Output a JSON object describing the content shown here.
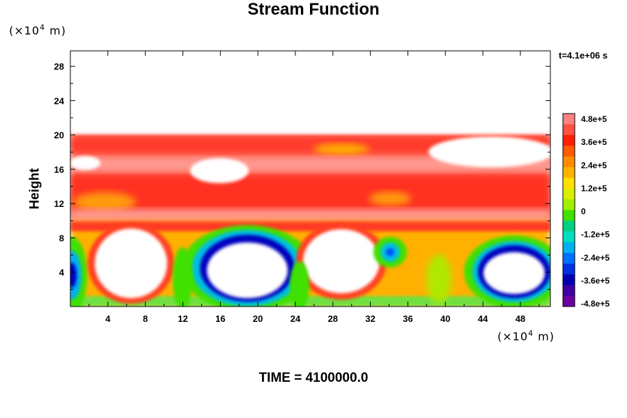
{
  "chart_data": {
    "type": "heatmap",
    "title": "Stream Function",
    "ylabel": "Height",
    "xunit": "(×10",
    "exp": "4",
    "unit_tail": " m)",
    "timestamp": "t=4.1e+06 s",
    "time_label": "TIME = 4100000.0",
    "x_ticks": [
      "4",
      "8",
      "12",
      "16",
      "20",
      "24",
      "28",
      "32",
      "36",
      "40",
      "44",
      "48"
    ],
    "x_tick_values": [
      4,
      8,
      12,
      16,
      20,
      24,
      28,
      32,
      36,
      40,
      44,
      48
    ],
    "y_ticks": [
      "4",
      "8",
      "12",
      "16",
      "20",
      "24",
      "28"
    ],
    "y_tick_values": [
      4,
      8,
      12,
      16,
      20,
      24,
      28
    ],
    "xlim": [
      0,
      51.2
    ],
    "ylim": [
      0,
      29.8
    ],
    "colorbar": {
      "labels": [
        "4.8e+5",
        "3.6e+5",
        "2.4e+5",
        "1.2e+5",
        "0",
        "-1.2e+5",
        "-2.4e+5",
        "-3.6e+5",
        "-4.8e+5"
      ],
      "values": [
        480000,
        360000,
        240000,
        120000,
        0,
        -120000,
        -240000,
        -360000,
        -480000
      ],
      "colors": [
        "#ff8080",
        "#ff5040",
        "#ff2000",
        "#ff5a00",
        "#ff8c00",
        "#ffb400",
        "#ffe000",
        "#d8f000",
        "#a0f000",
        "#40e000",
        "#00d080",
        "#00e0c0",
        "#00b0f0",
        "#0070ff",
        "#0030e0",
        "#0000b0",
        "#4000a0",
        "#6a00a0"
      ]
    }
  }
}
